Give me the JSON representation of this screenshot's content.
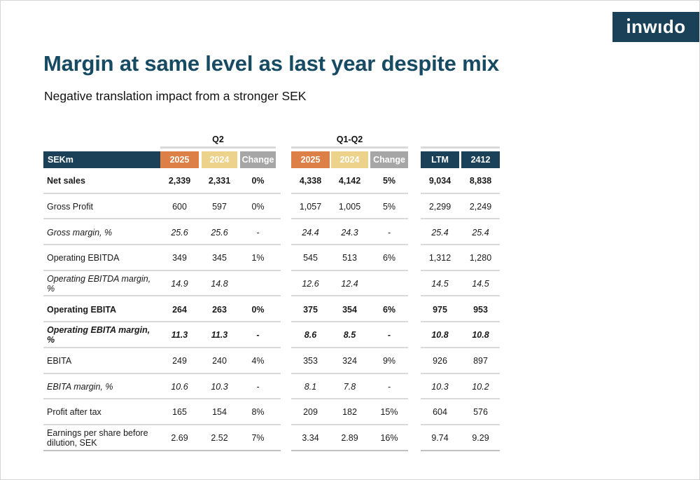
{
  "logo": {
    "text": "ınwıdo"
  },
  "header": {
    "title": "Margin at same level as last year despite mix",
    "subtitle": "Negative translation impact from a stronger SEK"
  },
  "colors": {
    "navy": "#1a4158",
    "orange": "#dd8047",
    "tan": "#ecd28a",
    "gray": "#a6a6a6",
    "title_navy": "#174a63",
    "separator": "#d9d9d9"
  },
  "table": {
    "group_labels": {
      "q2": "Q2",
      "q1q2": "Q1-Q2"
    },
    "columns": {
      "label": "SEKm",
      "q2": [
        "2025",
        "2024",
        "Change"
      ],
      "q1q2": [
        "2025",
        "2024",
        "Change"
      ],
      "ltm": [
        "LTM",
        "2412"
      ]
    },
    "rows": [
      {
        "label": "Net sales",
        "style": "bold",
        "values": [
          "2,339",
          "2,331",
          "0%",
          "4,338",
          "4,142",
          "5%",
          "9,034",
          "8,838"
        ]
      },
      {
        "label": "Gross Profit",
        "style": "regular",
        "values": [
          "600",
          "597",
          "0%",
          "1,057",
          "1,005",
          "5%",
          "2,299",
          "2,249"
        ]
      },
      {
        "label": "Gross margin, %",
        "style": "italic",
        "values": [
          "25.6",
          "25.6",
          "-",
          "24.4",
          "24.3",
          "-",
          "25.4",
          "25.4"
        ]
      },
      {
        "label": "Operating EBITDA",
        "style": "regular",
        "values": [
          "349",
          "345",
          "1%",
          "545",
          "513",
          "6%",
          "1,312",
          "1,280"
        ]
      },
      {
        "label": "Operating EBITDA margin, %",
        "style": "italic",
        "values": [
          "14.9",
          "14.8",
          "",
          "12.6",
          "12.4",
          "",
          "14.5",
          "14.5"
        ]
      },
      {
        "label": "Operating EBITA",
        "style": "bold",
        "values": [
          "264",
          "263",
          "0%",
          "375",
          "354",
          "6%",
          "975",
          "953"
        ]
      },
      {
        "label": "Operating EBITA margin, %",
        "style": "bold-italic",
        "values": [
          "11.3",
          "11.3",
          "-",
          "8.6",
          "8.5",
          "-",
          "10.8",
          "10.8"
        ]
      },
      {
        "label": "EBITA",
        "style": "regular",
        "values": [
          "249",
          "240",
          "4%",
          "353",
          "324",
          "9%",
          "926",
          "897"
        ]
      },
      {
        "label": "EBITA margin, %",
        "style": "italic",
        "values": [
          "10.6",
          "10.3",
          "-",
          "8.1",
          "7.8",
          "-",
          "10.3",
          "10.2"
        ]
      },
      {
        "label": "Profit after tax",
        "style": "regular",
        "values": [
          "165",
          "154",
          "8%",
          "209",
          "182",
          "15%",
          "604",
          "576"
        ]
      },
      {
        "label": "Earnings per share before dilution, SEK",
        "style": "regular",
        "values": [
          "2.69",
          "2.52",
          "7%",
          "3.34",
          "2.89",
          "16%",
          "9.74",
          "9.29"
        ]
      }
    ]
  }
}
